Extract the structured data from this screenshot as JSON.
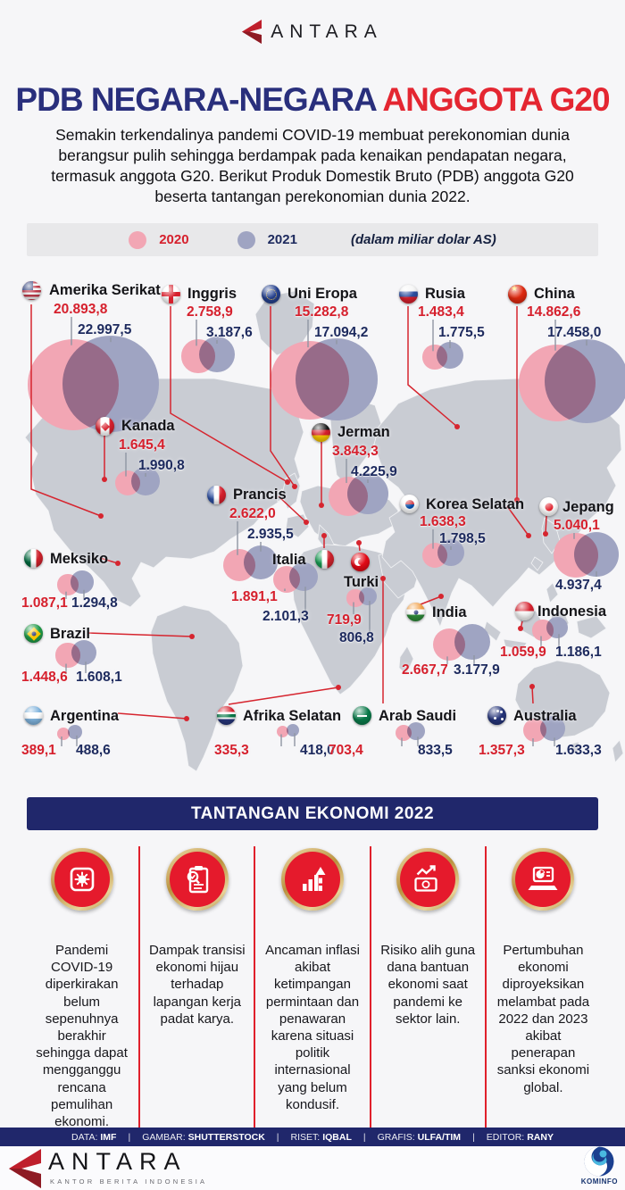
{
  "brand": {
    "name": "ANTARA",
    "tagline": "KANTOR BERITA INDONESIA",
    "partner": "KOMINFO"
  },
  "header": {
    "title_primary": "PDB NEGARA-NEGARA",
    "title_accent": "ANGGOTA G20",
    "intro": "Semakin terkendalinya pandemi COVID-19 membuat perekonomian dunia berangsur pulih sehingga berdampak pada kenaikan pendapatan negara, termasuk anggota G20. Berikut Produk Domestik Bruto (PDB) anggota G20 beserta tantangan perekonomian dunia 2022."
  },
  "legend": {
    "series": [
      {
        "label": "2020",
        "color": "#f2a6b4"
      },
      {
        "label": "2021",
        "color": "#9fa4c2"
      }
    ],
    "unit_note": "(dalam miliar dolar AS)"
  },
  "chart_data": {
    "type": "bubble-map",
    "title": "PDB NEGARA-NEGARA ANGGOTA G20",
    "unit": "miliar dolar AS",
    "series_labels": [
      "2020",
      "2021"
    ],
    "countries": [
      {
        "id": "us",
        "name": "Amerika Serikat",
        "v2020": "20.893,8",
        "v2021": "22.997,5",
        "v2020_num": 20893.8,
        "v2021_num": 22997.5
      },
      {
        "id": "uk",
        "name": "Inggris",
        "v2020": "2.758,9",
        "v2021": "3.187,6",
        "v2020_num": 2758.9,
        "v2021_num": 3187.6
      },
      {
        "id": "eu",
        "name": "Uni Eropa",
        "v2020": "15.282,8",
        "v2021": "17.094,2",
        "v2020_num": 15282.8,
        "v2021_num": 17094.2
      },
      {
        "id": "ru",
        "name": "Rusia",
        "v2020": "1.483,4",
        "v2021": "1.775,5",
        "v2020_num": 1483.4,
        "v2021_num": 1775.5
      },
      {
        "id": "cn",
        "name": "China",
        "v2020": "14.862,6",
        "v2021": "17.458,0",
        "v2020_num": 14862.6,
        "v2021_num": 17458.0
      },
      {
        "id": "ca",
        "name": "Kanada",
        "v2020": "1.645,4",
        "v2021": "1.990,8",
        "v2020_num": 1645.4,
        "v2021_num": 1990.8
      },
      {
        "id": "de",
        "name": "Jerman",
        "v2020": "3.843,3",
        "v2021": "4.225,9",
        "v2020_num": 3843.3,
        "v2021_num": 4225.9
      },
      {
        "id": "fr",
        "name": "Prancis",
        "v2020": "2.622,0",
        "v2021": "2.935,5",
        "v2020_num": 2622.0,
        "v2021_num": 2935.5
      },
      {
        "id": "kr",
        "name": "Korea Selatan",
        "v2020": "1.638,3",
        "v2021": "1.798,5",
        "v2020_num": 1638.3,
        "v2021_num": 1798.5
      },
      {
        "id": "jp",
        "name": "Jepang",
        "v2020": "5.040,1",
        "v2021": "4.937,4",
        "v2020_num": 5040.1,
        "v2021_num": 4937.4
      },
      {
        "id": "mx",
        "name": "Meksiko",
        "v2020": "1.087,1",
        "v2021": "1.294,8",
        "v2020_num": 1087.1,
        "v2021_num": 1294.8
      },
      {
        "id": "it",
        "name": "Italia",
        "v2020": "1.891,1",
        "v2021": "2.101,3",
        "v2020_num": 1891.1,
        "v2021_num": 2101.3
      },
      {
        "id": "tr",
        "name": "Turki",
        "v2020": "719,9",
        "v2021": "806,8",
        "v2020_num": 719.9,
        "v2021_num": 806.8
      },
      {
        "id": "in",
        "name": "India",
        "v2020": "2.667,7",
        "v2021": "3.177,9",
        "v2020_num": 2667.7,
        "v2021_num": 3177.9
      },
      {
        "id": "id",
        "name": "Indonesia",
        "v2020": "1.059,9",
        "v2021": "1.186,1",
        "v2020_num": 1059.9,
        "v2021_num": 1186.1
      },
      {
        "id": "br",
        "name": "Brazil",
        "v2020": "1.448,6",
        "v2021": "1.608,1",
        "v2020_num": 1448.6,
        "v2021_num": 1608.1
      },
      {
        "id": "ar",
        "name": "Argentina",
        "v2020": "389,1",
        "v2021": "488,6",
        "v2020_num": 389.1,
        "v2021_num": 488.6
      },
      {
        "id": "za",
        "name": "Afrika Selatan",
        "v2020": "335,3",
        "v2021": "418,0",
        "v2020_num": 335.3,
        "v2021_num": 418.0
      },
      {
        "id": "sa",
        "name": "Arab Saudi",
        "v2020": "703,4",
        "v2021": "833,5",
        "v2020_num": 703.4,
        "v2021_num": 833.5
      },
      {
        "id": "au",
        "name": "Australia",
        "v2020": "1.357,3",
        "v2021": "1.633,3",
        "v2020_num": 1357.3,
        "v2021_num": 1633.3
      }
    ]
  },
  "challenges": {
    "banner": "TANTANGAN EKONOMI 2022",
    "items": [
      {
        "icon": "virus-icon",
        "text": "Pandemi COVID-19 diperkirakan belum sepenuhnya berakhir sehingga dapat mengganggu rencana pemulihan ekonomi."
      },
      {
        "icon": "checklist-icon",
        "text": "Dampak transisi ekonomi hijau terhadap lapangan kerja padat karya."
      },
      {
        "icon": "inflation-icon",
        "text": "Ancaman inflasi akibat ketimpangan permintaan dan penawaran karena situasi politik internasional yang belum kondusif."
      },
      {
        "icon": "money-icon",
        "text": "Risiko alih guna dana bantuan ekonomi saat pandemi ke sektor lain."
      },
      {
        "icon": "laptop-icon",
        "text": "Pertumbuhan ekonomi diproyeksikan melambat pada 2022 dan 2023 akibat penerapan sanksi ekonomi global."
      }
    ]
  },
  "credits": [
    {
      "label": "DATA:",
      "value": "IMF"
    },
    {
      "label": "GAMBAR:",
      "value": "SHUTTERSTOCK"
    },
    {
      "label": "RISET:",
      "value": "IQBAL"
    },
    {
      "label": "GRAFIS:",
      "value": "ULFA/TIM"
    },
    {
      "label": "EDITOR:",
      "value": "RANY"
    }
  ],
  "colors": {
    "accent_red": "#e42631",
    "navy": "#292f7c",
    "bubble_2020": "#f2a6b4",
    "bubble_2021": "#9fa4c2",
    "value_2020": "#d6202d",
    "value_2021": "#1d2a5e",
    "land": "#c9ccd3",
    "banner_bg": "#20276b"
  }
}
